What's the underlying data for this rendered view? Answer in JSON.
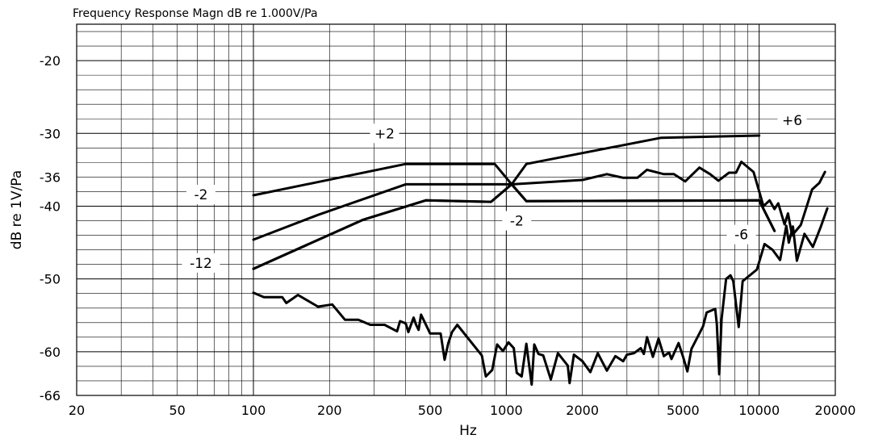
{
  "chart_data": {
    "type": "line",
    "title": "Frequency Response Magn dB re 1.000V/Pa",
    "xlabel": "Hz",
    "ylabel": "dB re 1V/Pa",
    "xscale": "log",
    "xlim": [
      20,
      20000
    ],
    "ylim": [
      -66,
      -15
    ],
    "grid": true,
    "x_ticks": [
      20,
      50,
      100,
      200,
      500,
      1000,
      2000,
      5000,
      10000,
      20000
    ],
    "x_tick_labels": [
      "20",
      "50",
      "100",
      "200",
      "500",
      "1000",
      "2000",
      "5000",
      "10000",
      "20000"
    ],
    "y_ticks": [
      -20,
      -30,
      -36,
      -40,
      -50,
      -60,
      -66
    ],
    "y_tick_labels": [
      "-20",
      "-30",
      "-36",
      "-40",
      "-50",
      "-60",
      "-66"
    ],
    "annotations": [
      {
        "text": "+2",
        "x": 330,
        "y": -30
      },
      {
        "text": "+6",
        "x": 13500,
        "y": -28.2
      },
      {
        "text": "-2",
        "x": 62,
        "y": -38.4
      },
      {
        "text": "-2",
        "x": 1100,
        "y": -42
      },
      {
        "text": "-12",
        "x": 62,
        "y": -47.8
      },
      {
        "text": "-6",
        "x": 8500,
        "y": -43.9
      }
    ],
    "series": [
      {
        "values": [
          [
            100,
            -38.5
          ],
          [
            400,
            -34.2
          ],
          [
            900,
            -34.2
          ],
          [
            1050,
            -37.0
          ],
          [
            1200,
            -34.2
          ],
          [
            4100,
            -30.6
          ],
          [
            10000,
            -30.3
          ]
        ]
      },
      {
        "values": [
          [
            100,
            -44.6
          ],
          [
            180,
            -41.2
          ],
          [
            400,
            -37.0
          ],
          [
            900,
            -37.0
          ],
          [
            1050,
            -37.0
          ],
          [
            2000,
            -36.4
          ],
          [
            2500,
            -35.6
          ],
          [
            2900,
            -36.1
          ],
          [
            3300,
            -36.1
          ],
          [
            3600,
            -35.0
          ],
          [
            4200,
            -35.6
          ],
          [
            4600,
            -35.6
          ],
          [
            5100,
            -36.6
          ],
          [
            5800,
            -34.7
          ],
          [
            6400,
            -35.6
          ],
          [
            6900,
            -36.5
          ],
          [
            7600,
            -35.4
          ],
          [
            8100,
            -35.4
          ],
          [
            8500,
            -33.9
          ],
          [
            9500,
            -35.3
          ],
          [
            10400,
            -40.0
          ],
          [
            11000,
            -39.2
          ],
          [
            11500,
            -40.4
          ],
          [
            11900,
            -39.6
          ],
          [
            12600,
            -42.5
          ],
          [
            13000,
            -41.0
          ],
          [
            13500,
            -44.0
          ],
          [
            14600,
            -42.6
          ],
          [
            16200,
            -37.7
          ],
          [
            17300,
            -36.8
          ],
          [
            18200,
            -35.3
          ]
        ]
      },
      {
        "values": [
          [
            100,
            -48.6
          ],
          [
            270,
            -41.9
          ],
          [
            480,
            -39.2
          ],
          [
            870,
            -39.4
          ],
          [
            1050,
            -37.0
          ],
          [
            1200,
            -39.3
          ],
          [
            10000,
            -39.2
          ],
          [
            11500,
            -43.4
          ]
        ]
      },
      {
        "values": [
          [
            100,
            -48.6
          ],
          [
            270,
            -41.9
          ],
          [
            480,
            -39.2
          ],
          [
            870,
            -39.4
          ],
          [
            1050,
            -37.0
          ],
          [
            1200,
            -39.3
          ],
          [
            10000,
            -39.2
          ],
          [
            11500,
            -43.4
          ]
        ]
      },
      {
        "values": [
          [
            100,
            -51.9
          ],
          [
            110,
            -52.5
          ],
          [
            130,
            -52.5
          ],
          [
            135,
            -53.3
          ],
          [
            150,
            -52.2
          ],
          [
            180,
            -53.8
          ],
          [
            205,
            -53.5
          ],
          [
            230,
            -55.6
          ],
          [
            260,
            -55.6
          ],
          [
            290,
            -56.3
          ],
          [
            330,
            -56.3
          ],
          [
            370,
            -57.2
          ],
          [
            380,
            -55.8
          ],
          [
            400,
            -56.1
          ],
          [
            410,
            -57.3
          ],
          [
            430,
            -55.3
          ],
          [
            440,
            -56.3
          ],
          [
            450,
            -57.0
          ],
          [
            460,
            -54.9
          ],
          [
            500,
            -57.5
          ],
          [
            550,
            -57.5
          ],
          [
            570,
            -61.1
          ],
          [
            590,
            -58.8
          ],
          [
            610,
            -57.3
          ],
          [
            640,
            -56.3
          ],
          [
            800,
            -60.5
          ],
          [
            830,
            -63.4
          ],
          [
            880,
            -62.5
          ],
          [
            920,
            -59.0
          ],
          [
            970,
            -59.9
          ],
          [
            1020,
            -58.7
          ],
          [
            1070,
            -59.5
          ],
          [
            1100,
            -62.9
          ],
          [
            1150,
            -63.4
          ],
          [
            1200,
            -58.9
          ],
          [
            1260,
            -64.5
          ],
          [
            1290,
            -59.0
          ],
          [
            1340,
            -60.3
          ],
          [
            1400,
            -60.5
          ],
          [
            1500,
            -63.8
          ],
          [
            1600,
            -60.2
          ],
          [
            1750,
            -61.9
          ],
          [
            1780,
            -64.3
          ],
          [
            1850,
            -60.4
          ],
          [
            2000,
            -61.3
          ],
          [
            2150,
            -62.8
          ],
          [
            2300,
            -60.2
          ],
          [
            2500,
            -62.6
          ],
          [
            2700,
            -60.6
          ],
          [
            2900,
            -61.3
          ],
          [
            3000,
            -60.4
          ],
          [
            3200,
            -60.2
          ],
          [
            3400,
            -59.5
          ],
          [
            3500,
            -60.3
          ],
          [
            3600,
            -58.0
          ],
          [
            3800,
            -60.7
          ],
          [
            4000,
            -58.2
          ],
          [
            4200,
            -60.6
          ],
          [
            4400,
            -60.1
          ],
          [
            4500,
            -61.0
          ],
          [
            4800,
            -58.8
          ],
          [
            5000,
            -60.7
          ],
          [
            5200,
            -62.7
          ],
          [
            5400,
            -59.6
          ],
          [
            6000,
            -56.5
          ],
          [
            6200,
            -54.6
          ],
          [
            6700,
            -54.1
          ],
          [
            6800,
            -56.2
          ],
          [
            6950,
            -63.1
          ],
          [
            7100,
            -55.5
          ],
          [
            7400,
            -50.0
          ],
          [
            7700,
            -49.5
          ],
          [
            7900,
            -50.3
          ],
          [
            8300,
            -56.6
          ],
          [
            8600,
            -50.3
          ],
          [
            9800,
            -48.7
          ],
          [
            10500,
            -45.2
          ],
          [
            11300,
            -46.0
          ],
          [
            12100,
            -47.4
          ],
          [
            12800,
            -42.7
          ],
          [
            13100,
            -45.0
          ],
          [
            13600,
            -42.8
          ],
          [
            14100,
            -47.5
          ],
          [
            15100,
            -43.8
          ],
          [
            16300,
            -45.6
          ],
          [
            17500,
            -42.9
          ],
          [
            18600,
            -40.3
          ]
        ]
      }
    ]
  }
}
